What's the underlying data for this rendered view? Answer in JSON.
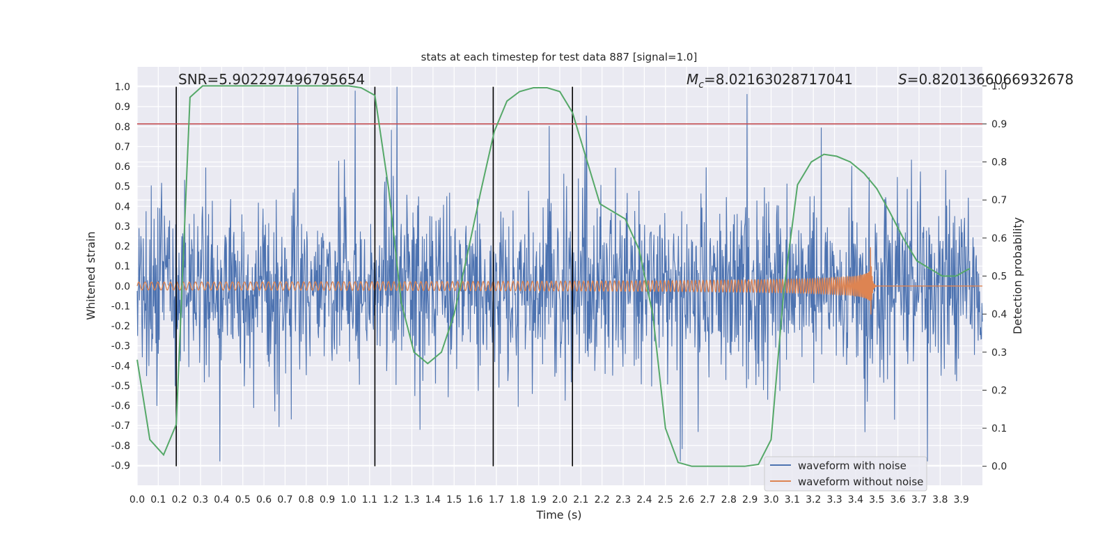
{
  "chart_data": {
    "type": "line",
    "title": "stats at each timestep for test data 887 [signal=1.0]",
    "xlabel": "Time (s)",
    "ylabel": "Whitened strain",
    "ylabel_right": "Detection probability",
    "xlim": [
      0.0,
      4.0
    ],
    "ylim": [
      -1.0,
      1.1
    ],
    "ylim_right": [
      -0.05,
      1.05
    ],
    "x_ticks": [
      "0.0",
      "0.1",
      "0.2",
      "0.3",
      "0.4",
      "0.5",
      "0.6",
      "0.7",
      "0.8",
      "0.9",
      "1.0",
      "1.1",
      "1.2",
      "1.3",
      "1.4",
      "1.5",
      "1.6",
      "1.7",
      "1.8",
      "1.9",
      "2.0",
      "2.1",
      "2.2",
      "2.3",
      "2.4",
      "2.5",
      "2.6",
      "2.7",
      "2.8",
      "2.9",
      "3.0",
      "3.1",
      "3.2",
      "3.3",
      "3.4",
      "3.5",
      "3.6",
      "3.7",
      "3.8",
      "3.9"
    ],
    "y_ticks": [
      "1.0",
      "0.9",
      "0.8",
      "0.7",
      "0.6",
      "0.5",
      "0.4",
      "0.3",
      "0.2",
      "0.1",
      "0.0",
      "-0.1",
      "-0.2",
      "-0.3",
      "-0.4",
      "-0.5",
      "-0.6",
      "-0.7",
      "-0.8",
      "-0.9"
    ],
    "y_ticks_right": [
      "1.0",
      "0.9",
      "0.8",
      "0.7",
      "0.6",
      "0.5",
      "0.4",
      "0.3",
      "0.2",
      "0.1",
      "0.0"
    ],
    "annotations": {
      "snr": "SNR=5.902297496795654",
      "mc_symbol": "M",
      "mc_sub": "c",
      "mc_value": "=8.02163028717041",
      "s_symbol": "S",
      "s_value": "=0.8201366066932678"
    },
    "threshold_right": 0.9,
    "vlines_x": [
      0.185,
      1.125,
      1.685,
      2.06
    ],
    "noisy_waveform": {
      "name": "waveform with noise",
      "color": "#4c72b0",
      "std": 0.22,
      "x_start": 0.0,
      "x_end": 4.0,
      "samples": 1800
    },
    "clean_waveform": {
      "name": "waveform without noise",
      "color": "#dd8452",
      "merger_x": 3.47,
      "peak_amplitude": 0.22,
      "base_amplitude": 0.02,
      "start_frequency": 33,
      "end_frequency": 260
    },
    "detection_probability": {
      "name": "Detection probability",
      "color": "#55a868",
      "x": [
        0.0,
        0.06,
        0.125,
        0.185,
        0.25,
        0.31,
        0.375,
        0.44,
        0.5,
        0.56,
        0.625,
        0.69,
        0.75,
        0.81,
        0.875,
        0.94,
        1.0,
        1.06,
        1.125,
        1.19,
        1.25,
        1.31,
        1.375,
        1.44,
        1.5,
        1.56,
        1.625,
        1.69,
        1.75,
        1.81,
        1.875,
        1.94,
        2.0,
        2.06,
        2.125,
        2.19,
        2.25,
        2.31,
        2.375,
        2.44,
        2.5,
        2.56,
        2.625,
        2.69,
        2.75,
        2.81,
        2.875,
        2.94,
        3.0,
        3.06,
        3.125,
        3.19,
        3.25,
        3.31,
        3.375,
        3.44,
        3.5,
        3.56,
        3.625,
        3.69,
        3.75,
        3.81,
        3.875,
        3.94
      ],
      "values": [
        0.28,
        0.07,
        0.03,
        0.11,
        0.97,
        1.0,
        1.0,
        1.0,
        1.0,
        1.0,
        1.0,
        1.0,
        1.0,
        1.0,
        1.0,
        1.0,
        1.0,
        0.995,
        0.975,
        0.73,
        0.43,
        0.3,
        0.27,
        0.3,
        0.4,
        0.55,
        0.72,
        0.88,
        0.96,
        0.985,
        0.995,
        0.995,
        0.985,
        0.93,
        0.81,
        0.69,
        0.67,
        0.65,
        0.57,
        0.4,
        0.1,
        0.01,
        0.0,
        0.0,
        0.0,
        0.0,
        0.0,
        0.005,
        0.07,
        0.46,
        0.74,
        0.8,
        0.82,
        0.815,
        0.8,
        0.77,
        0.73,
        0.67,
        0.6,
        0.54,
        0.52,
        0.5,
        0.5,
        0.52
      ]
    },
    "legend": {
      "position": "lower-right",
      "entries": [
        "waveform with noise",
        "waveform without noise"
      ]
    }
  }
}
